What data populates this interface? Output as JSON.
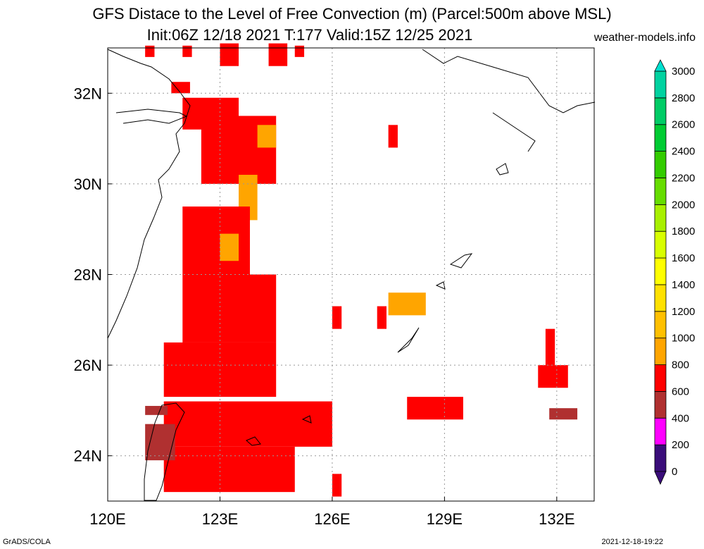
{
  "title_line1": "GFS Distace to the Level of Free Convection (m) (Parcel:500m above MSL)",
  "title_line2": "Init:06Z 12/18 2021 T:177 Valid:15Z 12/25 2021",
  "website": "weather-models.info",
  "footer_left": "GrADS/COLA",
  "footer_right": "2021-12-18-19:22",
  "map": {
    "lon_range": [
      120,
      133
    ],
    "lat_range": [
      23,
      33
    ],
    "x_ticks": [
      {
        "value": 120,
        "label": "120E"
      },
      {
        "value": 123,
        "label": "123E"
      },
      {
        "value": 126,
        "label": "126E"
      },
      {
        "value": 129,
        "label": "129E"
      },
      {
        "value": 132,
        "label": "132E"
      }
    ],
    "y_ticks": [
      {
        "value": 24,
        "label": "24N"
      },
      {
        "value": 26,
        "label": "26N"
      },
      {
        "value": 28,
        "label": "28N"
      },
      {
        "value": 30,
        "label": "30N"
      },
      {
        "value": 32,
        "label": "32N"
      }
    ],
    "grid": true,
    "field_cells": [
      {
        "lon": 121.0,
        "lat": 32.8,
        "w": 0.25,
        "h": 0.25,
        "level": "400-600"
      },
      {
        "lon": 122.0,
        "lat": 32.8,
        "w": 0.25,
        "h": 0.25,
        "level": "400-600"
      },
      {
        "lon": 123.0,
        "lat": 32.6,
        "w": 0.5,
        "h": 0.5,
        "level": "400-600"
      },
      {
        "lon": 124.3,
        "lat": 32.6,
        "w": 0.5,
        "h": 0.5,
        "level": "400-600"
      },
      {
        "lon": 125.0,
        "lat": 32.8,
        "w": 0.25,
        "h": 0.25,
        "level": "400-600"
      },
      {
        "lon": 121.7,
        "lat": 32.0,
        "w": 0.5,
        "h": 0.25,
        "level": "400-600"
      },
      {
        "lon": 122.0,
        "lat": 31.2,
        "w": 1.5,
        "h": 0.7,
        "level": "400-600"
      },
      {
        "lon": 122.5,
        "lat": 30.0,
        "w": 2.0,
        "h": 1.5,
        "level": "400-600"
      },
      {
        "lon": 124.0,
        "lat": 30.8,
        "w": 0.5,
        "h": 0.5,
        "level": "600-800"
      },
      {
        "lon": 123.5,
        "lat": 29.2,
        "w": 0.5,
        "h": 1.0,
        "level": "600-800"
      },
      {
        "lon": 122.0,
        "lat": 28.0,
        "w": 1.8,
        "h": 1.5,
        "level": "400-600"
      },
      {
        "lon": 123.0,
        "lat": 28.3,
        "w": 0.5,
        "h": 0.6,
        "level": "600-800"
      },
      {
        "lon": 122.0,
        "lat": 26.5,
        "w": 2.5,
        "h": 1.5,
        "level": "400-600"
      },
      {
        "lon": 123.5,
        "lat": 27.7,
        "w": 0.8,
        "h": 0.25,
        "level": "400-600"
      },
      {
        "lon": 121.5,
        "lat": 25.3,
        "w": 3.0,
        "h": 1.2,
        "level": "400-600"
      },
      {
        "lon": 121.5,
        "lat": 24.2,
        "w": 4.5,
        "h": 1.0,
        "level": "400-600"
      },
      {
        "lon": 121.5,
        "lat": 23.2,
        "w": 3.5,
        "h": 1.0,
        "level": "400-600"
      },
      {
        "lon": 121.0,
        "lat": 24.9,
        "w": 0.6,
        "h": 0.2,
        "level": "200-400"
      },
      {
        "lon": 121.0,
        "lat": 23.9,
        "w": 0.8,
        "h": 0.8,
        "level": "200-400"
      },
      {
        "lon": 126.0,
        "lat": 26.8,
        "w": 0.25,
        "h": 0.5,
        "level": "400-600"
      },
      {
        "lon": 127.2,
        "lat": 26.8,
        "w": 0.25,
        "h": 0.5,
        "level": "400-600"
      },
      {
        "lon": 127.5,
        "lat": 27.1,
        "w": 1.0,
        "h": 0.5,
        "level": "600-800"
      },
      {
        "lon": 127.5,
        "lat": 30.8,
        "w": 0.25,
        "h": 0.5,
        "level": "400-600"
      },
      {
        "lon": 126.0,
        "lat": 23.1,
        "w": 0.25,
        "h": 0.5,
        "level": "400-600"
      },
      {
        "lon": 128.0,
        "lat": 24.8,
        "w": 1.5,
        "h": 0.5,
        "level": "400-600"
      },
      {
        "lon": 131.7,
        "lat": 26.0,
        "w": 0.25,
        "h": 0.8,
        "level": "400-600"
      },
      {
        "lon": 131.5,
        "lat": 25.5,
        "w": 0.8,
        "h": 0.5,
        "level": "400-600"
      },
      {
        "lon": 131.8,
        "lat": 24.8,
        "w": 0.75,
        "h": 0.25,
        "level": "200-400"
      }
    ]
  },
  "legend": {
    "levels": [
      {
        "label": "0",
        "color": "#3a0d7a"
      },
      {
        "label": "200",
        "color": "#ff00ff"
      },
      {
        "label": "400",
        "color": "#b03030"
      },
      {
        "label": "600",
        "color": "#ff0000"
      },
      {
        "label": "800",
        "color": "#ffa500"
      },
      {
        "label": "1000",
        "color": "#ffc000"
      },
      {
        "label": "1200",
        "color": "#ffe100"
      },
      {
        "label": "1400",
        "color": "#ffff00"
      },
      {
        "label": "1600",
        "color": "#d8ff00"
      },
      {
        "label": "1800",
        "color": "#a8f000"
      },
      {
        "label": "2000",
        "color": "#66dd00"
      },
      {
        "label": "2200",
        "color": "#33cc00"
      },
      {
        "label": "2400",
        "color": "#00cc33"
      },
      {
        "label": "2600",
        "color": "#00cc66"
      },
      {
        "label": "2800",
        "color": "#00d2a0"
      },
      {
        "label": "3000",
        "color": "#00e0d0"
      }
    ]
  }
}
